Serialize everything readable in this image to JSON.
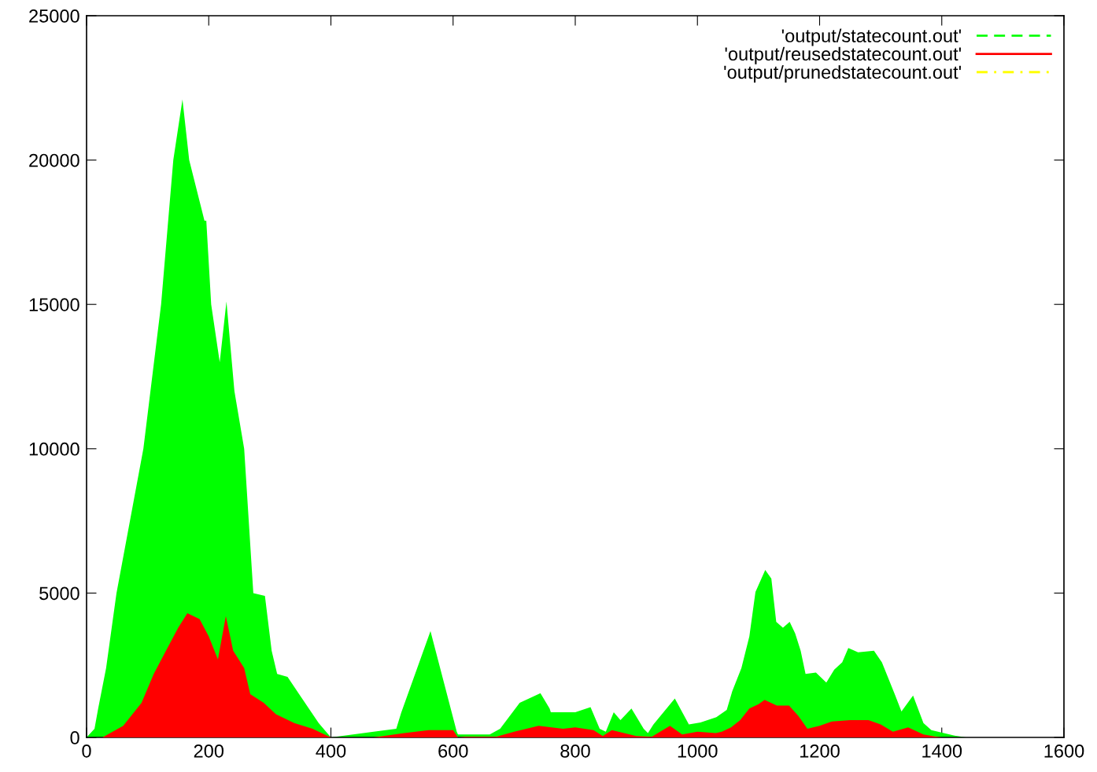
{
  "chart_data": {
    "type": "area",
    "xlim": [
      0,
      1600
    ],
    "ylim": [
      0,
      25000
    ],
    "xticks": [
      0,
      200,
      400,
      600,
      800,
      1000,
      1200,
      1400,
      1600
    ],
    "yticks": [
      0,
      5000,
      10000,
      15000,
      20000,
      25000
    ],
    "grid": false,
    "legend": "top right",
    "series": [
      {
        "name": "'output/statecount.out'",
        "color": "#00ff00",
        "line_style": "dashed",
        "x": [
          0,
          13,
          19,
          32,
          49,
          93,
          122,
          142,
          157,
          168,
          193,
          196,
          204,
          218,
          229,
          242,
          258,
          273,
          292,
          303,
          312,
          329,
          348,
          380,
          400,
          470,
          507,
          515,
          563,
          606,
          608,
          660,
          677,
          709,
          743,
          758,
          760,
          800,
          825,
          840,
          850,
          863,
          874,
          892,
          912,
          919,
          928,
          963,
          986,
          1005,
          1031,
          1048,
          1057,
          1072,
          1085,
          1095,
          1111,
          1121,
          1129,
          1140,
          1151,
          1160,
          1169,
          1177,
          1194,
          1211,
          1224,
          1237,
          1247,
          1263,
          1289,
          1302,
          1323,
          1334,
          1353,
          1370,
          1383,
          1421,
          1440
        ],
        "values": [
          0,
          300,
          1000,
          2400,
          5000,
          10000,
          15000,
          20000,
          22100,
          20000,
          17900,
          17900,
          15000,
          13000,
          15100,
          12000,
          10000,
          5000,
          4900,
          3000,
          2200,
          2100,
          1500,
          500,
          0,
          200,
          300,
          850,
          3680,
          200,
          100,
          100,
          300,
          1200,
          1530,
          1000,
          870,
          870,
          1050,
          300,
          200,
          870,
          600,
          1000,
          300,
          150,
          450,
          1350,
          450,
          520,
          700,
          950,
          1600,
          2400,
          3500,
          5040,
          5800,
          5500,
          4000,
          3800,
          4000,
          3600,
          3000,
          2200,
          2250,
          1900,
          2350,
          2600,
          3100,
          2950,
          3000,
          2600,
          1500,
          900,
          1450,
          500,
          250,
          60,
          0
        ]
      },
      {
        "name": "'output/reusedstatecount.out'",
        "color": "#ff0000",
        "line_style": "solid",
        "x": [
          0,
          26,
          60,
          90,
          110,
          130,
          150,
          165,
          185,
          200,
          215,
          228,
          240,
          258,
          268,
          290,
          310,
          340,
          370,
          395,
          400,
          470,
          520,
          560,
          600,
          608,
          620,
          670,
          700,
          740,
          780,
          800,
          830,
          845,
          860,
          900,
          925,
          955,
          975,
          1000,
          1030,
          1040,
          1055,
          1070,
          1085,
          1100,
          1110,
          1130,
          1150,
          1165,
          1180,
          1200,
          1220,
          1250,
          1280,
          1300,
          1320,
          1345,
          1370,
          1390,
          1400
        ],
        "values": [
          0,
          0,
          400,
          1200,
          2200,
          3000,
          3800,
          4300,
          4100,
          3500,
          2700,
          4200,
          3000,
          2400,
          1500,
          1200,
          800,
          500,
          300,
          50,
          0,
          0,
          150,
          250,
          250,
          0,
          20,
          20,
          200,
          400,
          300,
          350,
          250,
          50,
          250,
          50,
          20,
          400,
          100,
          200,
          150,
          200,
          350,
          600,
          1000,
          1150,
          1300,
          1100,
          1100,
          750,
          300,
          400,
          550,
          600,
          600,
          450,
          200,
          350,
          100,
          30,
          0
        ]
      },
      {
        "name": "'output/prunedstatecount.out'",
        "color": "#ffff00",
        "line_style": "dashdot"
      }
    ]
  }
}
